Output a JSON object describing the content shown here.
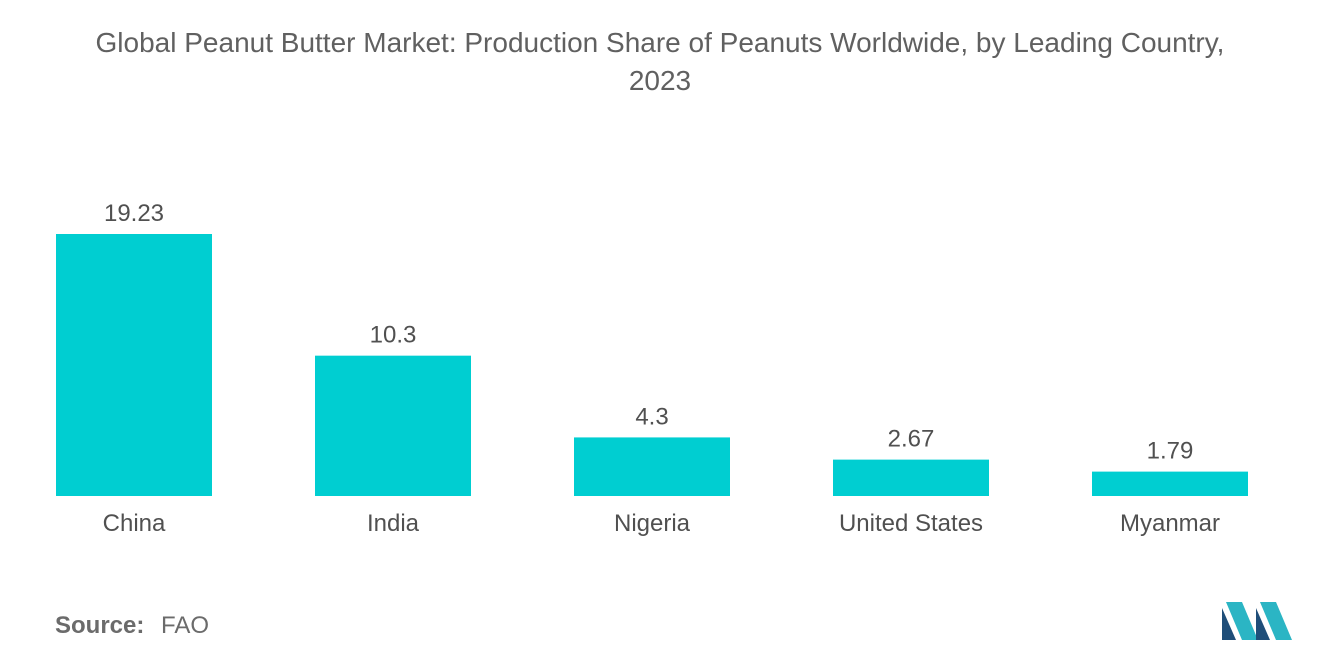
{
  "chart_data": {
    "type": "bar",
    "title_lines": [
      "Global Peanut Butter Market: Production Share of Peanuts Worldwide, by Leading Country,",
      "2023"
    ],
    "categories": [
      "China",
      "India",
      "Nigeria",
      "United States",
      "Myanmar"
    ],
    "values": [
      19.23,
      10.3,
      4.3,
      2.67,
      1.79
    ],
    "value_labels": [
      "19.23",
      "10.3",
      "4.3",
      "2.67",
      "1.79"
    ],
    "bar_color": "#00CED1",
    "ylim": [
      0,
      19.23
    ],
    "grid": false,
    "legend": "none"
  },
  "source": {
    "label": "Source:",
    "value": "FAO"
  },
  "logo": {
    "icon": "mordor-intelligence-logo-icon",
    "colors": [
      "#1f4e79",
      "#2bb5c4"
    ]
  }
}
